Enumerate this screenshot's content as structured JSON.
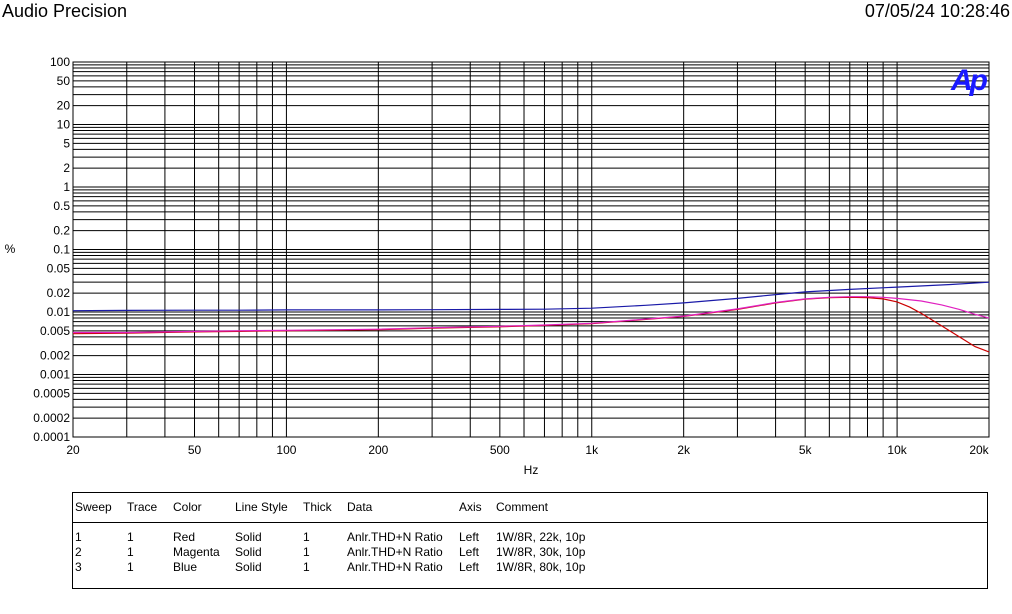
{
  "header": {
    "title": "Audio Precision",
    "datetime": "07/05/24 10:28:46"
  },
  "logo_text": "Ap",
  "chart_data": {
    "type": "line",
    "xlabel": "Hz",
    "ylabel": "%",
    "xscale": "log",
    "yscale": "log",
    "xlim": [
      20,
      20000
    ],
    "ylim": [
      0.0001,
      100
    ],
    "grid": true,
    "x_tick_labels": [
      "20",
      "50",
      "100",
      "200",
      "500",
      "1k",
      "2k",
      "5k",
      "10k",
      "20k"
    ],
    "x_tick_values": [
      20,
      50,
      100,
      200,
      500,
      1000,
      2000,
      5000,
      10000,
      20000
    ],
    "y_tick_labels": [
      "100",
      "50",
      "20",
      "10",
      "5",
      "2",
      "1",
      "0.5",
      "0.2",
      "0.1",
      "0.05",
      "0.02",
      "0.01",
      "0.005",
      "0.002",
      "0.001",
      "0.0005",
      "0.0002",
      "0.0001"
    ],
    "y_tick_values": [
      100,
      50,
      20,
      10,
      5,
      2,
      1,
      0.5,
      0.2,
      0.1,
      0.05,
      0.02,
      0.01,
      0.005,
      0.002,
      0.001,
      0.0005,
      0.0002,
      0.0001
    ],
    "series": [
      {
        "color": "#cc0000",
        "x": [
          20,
          30,
          50,
          70,
          100,
          200,
          300,
          500,
          700,
          1000,
          2000,
          3000,
          4000,
          5000,
          6000,
          7000,
          8000,
          9000,
          10000,
          11000,
          12000,
          14000,
          16000,
          18000,
          20000
        ],
        "y": [
          0.0045,
          0.0046,
          0.0048,
          0.0049,
          0.005,
          0.0052,
          0.0055,
          0.0058,
          0.0061,
          0.0065,
          0.0085,
          0.011,
          0.014,
          0.016,
          0.017,
          0.0172,
          0.017,
          0.0162,
          0.0145,
          0.012,
          0.0095,
          0.006,
          0.004,
          0.0028,
          0.0023
        ]
      },
      {
        "color": "#e020c0",
        "x": [
          20,
          30,
          50,
          70,
          100,
          200,
          300,
          500,
          700,
          1000,
          2000,
          3000,
          4000,
          5000,
          6000,
          7000,
          8000,
          9000,
          10000,
          12000,
          14000,
          16000,
          18000,
          20000
        ],
        "y": [
          0.0047,
          0.0047,
          0.0049,
          0.005,
          0.0051,
          0.0053,
          0.0056,
          0.0059,
          0.0062,
          0.0066,
          0.0086,
          0.0112,
          0.0142,
          0.0162,
          0.0172,
          0.0176,
          0.0176,
          0.0172,
          0.0165,
          0.015,
          0.013,
          0.011,
          0.0092,
          0.008
        ]
      },
      {
        "color": "#1a1aa8",
        "x": [
          20,
          30,
          50,
          70,
          100,
          200,
          300,
          500,
          700,
          1000,
          1500,
          2000,
          3000,
          4000,
          5000,
          7000,
          10000,
          15000,
          20000
        ],
        "y": [
          0.0105,
          0.0106,
          0.0107,
          0.0107,
          0.0108,
          0.0108,
          0.0109,
          0.011,
          0.0111,
          0.0115,
          0.0128,
          0.014,
          0.0165,
          0.019,
          0.021,
          0.023,
          0.025,
          0.0275,
          0.03
        ]
      }
    ]
  },
  "legend": {
    "headers": [
      "Sweep",
      "Trace",
      "Color",
      "Line Style",
      "Thick",
      "Data",
      "Axis",
      "Comment"
    ],
    "rows": [
      [
        "1",
        "1",
        "Red",
        "Solid",
        "1",
        "Anlr.THD+N Ratio",
        "Left",
        "1W/8R, 22k, 10p"
      ],
      [
        "2",
        "1",
        "Magenta",
        "Solid",
        "1",
        "Anlr.THD+N Ratio",
        "Left",
        "1W/8R, 30k, 10p"
      ],
      [
        "3",
        "1",
        "Blue",
        "Solid",
        "1",
        "Anlr.THD+N Ratio",
        "Left",
        "1W/8R, 80k, 10p"
      ]
    ]
  }
}
